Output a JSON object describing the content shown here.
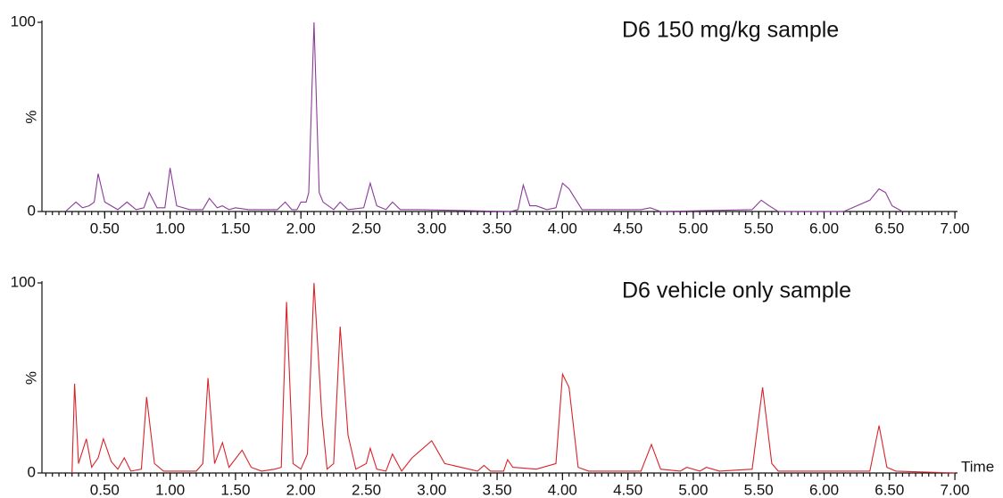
{
  "chart_data": [
    {
      "type": "line",
      "annotation": "D6 150 mg/kg sample",
      "ylabel": "%",
      "color": "#8b3a9b",
      "xlim": [
        0.02,
        7.02
      ],
      "ylim": [
        0,
        100
      ],
      "yticks": [
        0,
        100
      ],
      "xticks": [
        {
          "value": 0.5,
          "label": "0.50"
        },
        {
          "value": 1,
          "label": "1.00"
        },
        {
          "value": 1.5,
          "label": "1.50"
        },
        {
          "value": 2,
          "label": "2.00"
        },
        {
          "value": 2.5,
          "label": "2.50"
        },
        {
          "value": 3,
          "label": "3.00"
        },
        {
          "value": 3.5,
          "label": "3.50"
        },
        {
          "value": 4,
          "label": "4.00"
        },
        {
          "value": 4.5,
          "label": "4.50"
        },
        {
          "value": 5,
          "label": "5.00"
        },
        {
          "value": 5.5,
          "label": "5.50"
        },
        {
          "value": 6,
          "label": "6.00"
        },
        {
          "value": 6.5,
          "label": "6.50"
        },
        {
          "value": 7,
          "label": "7.00"
        }
      ],
      "x": [
        0.2,
        0.28,
        0.33,
        0.38,
        0.42,
        0.45,
        0.5,
        0.6,
        0.67,
        0.74,
        0.8,
        0.84,
        0.9,
        0.96,
        1.0,
        1.05,
        1.15,
        1.25,
        1.3,
        1.36,
        1.4,
        1.45,
        1.5,
        1.6,
        1.82,
        1.88,
        1.93,
        1.97,
        2.0,
        2.04,
        2.06,
        2.1,
        2.14,
        2.17,
        2.25,
        2.3,
        2.36,
        2.48,
        2.53,
        2.58,
        2.65,
        2.7,
        2.76,
        2.9,
        3.6,
        3.66,
        3.7,
        3.75,
        3.8,
        3.88,
        3.95,
        4.0,
        4.05,
        4.15,
        4.6,
        4.67,
        4.75,
        5.45,
        5.52,
        5.58,
        5.65,
        6.15,
        6.35,
        6.42,
        6.47,
        6.52,
        6.6
      ],
      "values": [
        0,
        5,
        2,
        3,
        5,
        20,
        5,
        1,
        5,
        1,
        2,
        10,
        2,
        2,
        23,
        3,
        1,
        1,
        7,
        2,
        3,
        1,
        2,
        1,
        1,
        5,
        1,
        1,
        5,
        5,
        10,
        100,
        10,
        5,
        1,
        5,
        1,
        2,
        15,
        3,
        1,
        5,
        1,
        1,
        0,
        1,
        14,
        3,
        3,
        1,
        2,
        15,
        12,
        1,
        1,
        2,
        0,
        1,
        6,
        3,
        0,
        0,
        6,
        12,
        10,
        3,
        0
      ]
    },
    {
      "type": "line",
      "annotation": "D6 vehicle only sample",
      "ylabel": "%",
      "xlabel": "Time",
      "color": "#d8232a",
      "xlim": [
        0.02,
        7.02
      ],
      "ylim": [
        0,
        100
      ],
      "yticks": [
        0,
        100
      ],
      "xticks": [
        {
          "value": 0.5,
          "label": "0.50"
        },
        {
          "value": 1,
          "label": "1.00"
        },
        {
          "value": 1.5,
          "label": "1.50"
        },
        {
          "value": 2,
          "label": "2.00"
        },
        {
          "value": 2.5,
          "label": "2.50"
        },
        {
          "value": 3,
          "label": "3.00"
        },
        {
          "value": 3.5,
          "label": "3.50"
        },
        {
          "value": 4,
          "label": "4.00"
        },
        {
          "value": 4.5,
          "label": "4.50"
        },
        {
          "value": 5,
          "label": "5.00"
        },
        {
          "value": 5.5,
          "label": "5.50"
        },
        {
          "value": 6,
          "label": "6.00"
        },
        {
          "value": 6.5,
          "label": "6.50"
        },
        {
          "value": 7,
          "label": "7.00"
        }
      ],
      "x": [
        0.25,
        0.27,
        0.3,
        0.36,
        0.4,
        0.45,
        0.49,
        0.55,
        0.6,
        0.65,
        0.7,
        0.78,
        0.82,
        0.88,
        0.95,
        1.2,
        1.25,
        1.29,
        1.34,
        1.4,
        1.45,
        1.55,
        1.62,
        1.7,
        1.8,
        1.85,
        1.89,
        1.94,
        2.0,
        2.05,
        2.1,
        2.16,
        2.2,
        2.25,
        2.3,
        2.36,
        2.42,
        2.5,
        2.53,
        2.58,
        2.65,
        2.7,
        2.77,
        2.85,
        3.0,
        3.1,
        3.35,
        3.4,
        3.45,
        3.55,
        3.58,
        3.62,
        3.8,
        3.95,
        4.0,
        4.05,
        4.12,
        4.2,
        4.6,
        4.68,
        4.75,
        4.9,
        4.95,
        5.05,
        5.1,
        5.2,
        5.45,
        5.53,
        5.6,
        5.65,
        6.35,
        6.42,
        6.48,
        6.55,
        7.0
      ],
      "values": [
        0,
        47,
        5,
        18,
        3,
        8,
        18,
        6,
        2,
        8,
        1,
        2,
        40,
        5,
        1,
        1,
        5,
        50,
        5,
        16,
        3,
        12,
        3,
        1,
        2,
        3,
        90,
        5,
        2,
        10,
        100,
        30,
        2,
        5,
        77,
        20,
        2,
        5,
        13,
        2,
        1,
        10,
        1,
        8,
        17,
        5,
        1,
        4,
        1,
        1,
        7,
        3,
        2,
        5,
        52,
        45,
        3,
        1,
        1,
        15,
        2,
        1,
        3,
        1,
        3,
        1,
        2,
        45,
        5,
        1,
        1,
        25,
        3,
        1,
        0
      ]
    }
  ]
}
